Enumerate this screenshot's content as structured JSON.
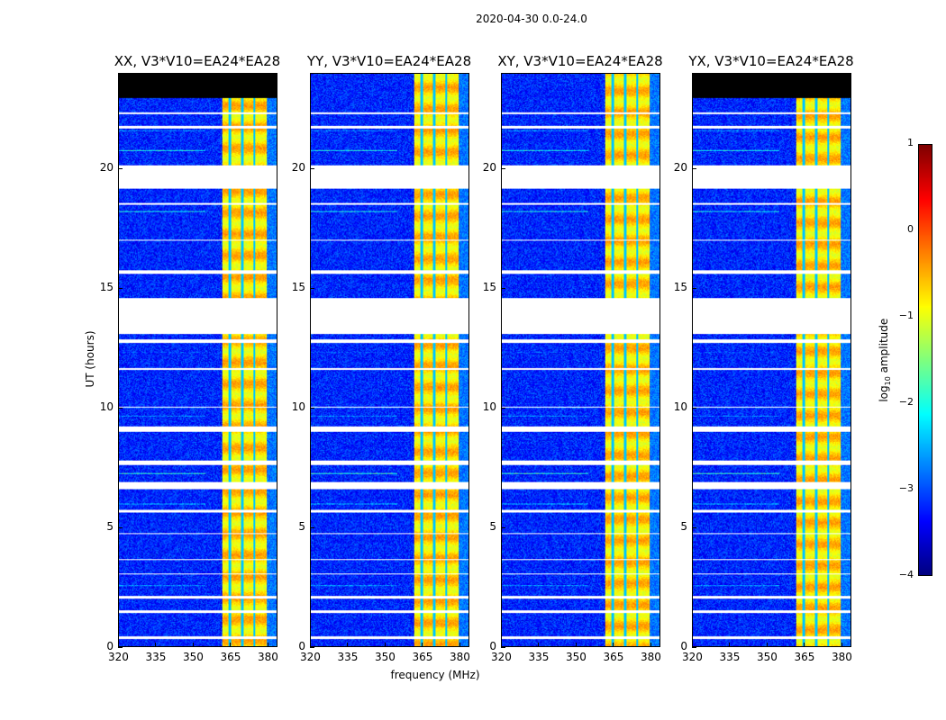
{
  "figure_title": "2020-04-30 0.0-24.0",
  "chart_data": {
    "type": "heatmap",
    "xlabel": "frequency (MHz)",
    "ylabel": "UT (hours)",
    "xlim": [
      320,
      384
    ],
    "ylim": [
      0,
      24
    ],
    "xticks": [
      "320",
      "335",
      "350",
      "365",
      "380"
    ],
    "yticks": [
      "0",
      "5",
      "10",
      "15",
      "20"
    ],
    "colormap": "jet",
    "colorbar": {
      "label": "log10 amplitude",
      "label_main": "log",
      "label_sub": "10",
      "label_rest": " amplitude",
      "range": [
        -4,
        1
      ],
      "ticks": [
        "1",
        "0",
        "−1",
        "−2",
        "−3",
        "−4"
      ]
    },
    "background_level": -3.2,
    "band": {
      "start_mhz": 362,
      "end_mhz": 380,
      "level": -1.0,
      "channel_gaps_mhz": [
        365,
        370,
        375
      ]
    },
    "flagged_hours": [
      [
        19.2,
        20.15
      ],
      [
        13.1,
        14.6
      ],
      [
        12.7,
        12.85
      ],
      [
        9.0,
        9.2
      ],
      [
        6.6,
        6.9
      ],
      [
        7.6,
        7.8
      ],
      [
        15.6,
        15.75
      ],
      [
        18.5,
        18.6
      ],
      [
        0.3,
        0.4
      ],
      [
        1.4,
        1.5
      ],
      [
        2.0,
        2.1
      ],
      [
        3.0,
        3.05
      ],
      [
        3.6,
        3.65
      ],
      [
        4.7,
        4.75
      ],
      [
        5.6,
        5.7
      ],
      [
        22.3,
        22.4
      ],
      [
        21.7,
        21.8
      ],
      [
        17.0,
        17.05
      ],
      [
        11.6,
        11.65
      ],
      [
        10.0,
        10.05
      ]
    ],
    "panels": [
      {
        "title": "XX, V3*V10=EA24*EA28",
        "no_data_above_hours": 23.0
      },
      {
        "title": "YY, V3*V10=EA24*EA28",
        "no_data_above_hours": null
      },
      {
        "title": "XY, V3*V10=EA24*EA28",
        "no_data_above_hours": null
      },
      {
        "title": "YX, V3*V10=EA24*EA28",
        "no_data_above_hours": 23.0
      }
    ]
  }
}
